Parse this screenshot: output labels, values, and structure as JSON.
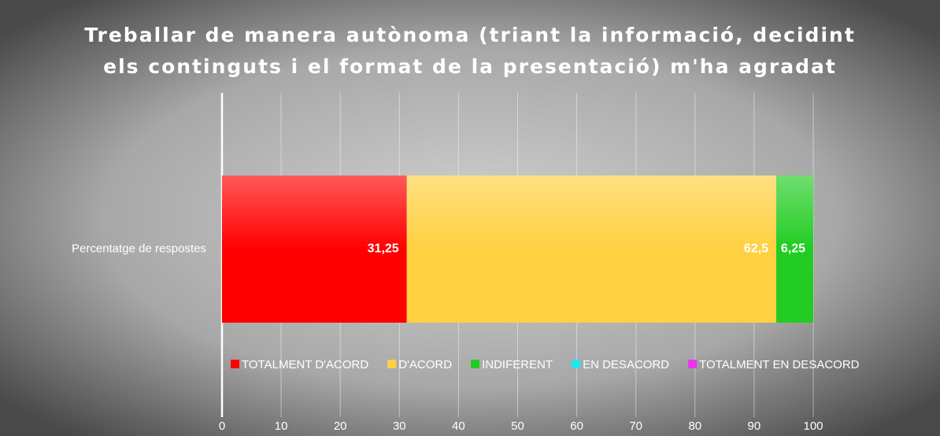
{
  "chart_data": {
    "type": "stacked_barh",
    "title": [
      "Treballar de manera autònoma (triant la informació, decidint",
      "els continguts i el format de la presentació) m'ha agradat"
    ],
    "categories": [
      "Percentatge de respostes"
    ],
    "series": [
      {
        "name": "TOTALMENT D'ACORD",
        "color": "#ff0000",
        "values": [
          31.25
        ],
        "value_labels": [
          "31,25"
        ]
      },
      {
        "name": "D'ACORD",
        "color": "#ffd040",
        "values": [
          62.5
        ],
        "value_labels": [
          "62,5"
        ]
      },
      {
        "name": "INDIFERENT",
        "color": "#22cc22",
        "values": [
          6.25
        ],
        "value_labels": [
          "6,25"
        ]
      },
      {
        "name": "EN DESACORD",
        "color": "#22e6ee",
        "values": [
          0
        ]
      },
      {
        "name": "TOTALMENT EN DESACORD",
        "color": "#ee33ee",
        "values": [
          0
        ]
      }
    ],
    "xlim": [
      0,
      100
    ],
    "xticks": [
      0,
      10,
      20,
      30,
      40,
      50,
      60,
      70,
      80,
      90,
      100
    ],
    "grid": true
  }
}
